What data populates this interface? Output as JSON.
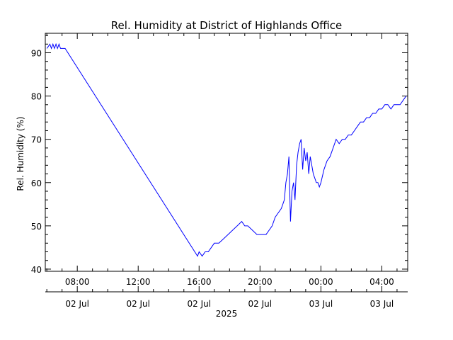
{
  "chart_data": {
    "type": "line",
    "title": "Rel. Humidity at District of Highlands Office",
    "xlabel": "",
    "ylabel": "Rel. Humidity (%)",
    "ylim": [
      39.5,
      94.5
    ],
    "xlim_hours": [
      5.9,
      29.7
    ],
    "grid": false,
    "legend": "none",
    "line_color": "#0000ff",
    "x_unit": "hours since 00:00 02 Jul 2025",
    "yticks": [
      40,
      50,
      60,
      70,
      80,
      90
    ],
    "xticks": [
      {
        "x": 8,
        "time": "08:00",
        "date": "02 Jul"
      },
      {
        "x": 12,
        "time": "12:00",
        "date": "02 Jul"
      },
      {
        "x": 16,
        "time": "16:00",
        "date": "02 Jul"
      },
      {
        "x": 20,
        "time": "20:00",
        "date": "02 Jul"
      },
      {
        "x": 24,
        "time": "00:00",
        "date": "03 Jul"
      },
      {
        "x": 28,
        "time": "04:00",
        "date": "03 Jul"
      }
    ],
    "year_label": "2025",
    "series": [
      {
        "x": [
          6.0,
          6.2,
          6.3,
          6.4,
          6.5,
          6.6,
          6.7,
          6.8,
          6.9,
          7.0,
          7.2,
          15.9,
          16.0,
          16.2,
          16.4,
          16.6,
          16.8,
          17.0,
          17.3,
          17.6,
          17.9,
          18.2,
          18.5,
          18.8,
          19.0,
          19.2,
          19.5,
          19.8,
          20.0,
          20.2,
          20.4,
          20.6,
          20.8,
          21.0,
          21.2,
          21.4,
          21.5,
          21.6,
          21.7,
          21.8,
          21.9,
          22.0,
          22.1,
          22.2,
          22.3,
          22.4,
          22.5,
          22.6,
          22.7,
          22.8,
          22.9,
          23.0,
          23.1,
          23.2,
          23.3,
          23.4,
          23.5,
          23.6,
          23.7,
          23.8,
          23.9,
          24.0,
          24.2,
          24.4,
          24.6,
          24.8,
          25.0,
          25.2,
          25.4,
          25.6,
          25.8,
          26.0,
          26.2,
          26.4,
          26.6,
          26.8,
          27.0,
          27.2,
          27.4,
          27.6,
          27.8,
          28.0,
          28.2,
          28.4,
          28.6,
          28.8,
          29.0,
          29.2,
          29.4,
          29.6
        ],
        "values": [
          91,
          92,
          91,
          92,
          91,
          92,
          91,
          92,
          91,
          91,
          91,
          43,
          44,
          43,
          44,
          44,
          45,
          46,
          46,
          47,
          48,
          49,
          50,
          51,
          50,
          50,
          49,
          48,
          48,
          48,
          48,
          49,
          50,
          52,
          53,
          54,
          55,
          56,
          60,
          62,
          66,
          51,
          58,
          60,
          56,
          64,
          67,
          69,
          70,
          63,
          68,
          65,
          67,
          62,
          66,
          64,
          62,
          61,
          60,
          60,
          59,
          60,
          63,
          65,
          66,
          68,
          70,
          69,
          70,
          70,
          71,
          71,
          72,
          73,
          74,
          74,
          75,
          75,
          76,
          76,
          77,
          77,
          78,
          78,
          77,
          78,
          78,
          78,
          79,
          80
        ]
      }
    ]
  }
}
